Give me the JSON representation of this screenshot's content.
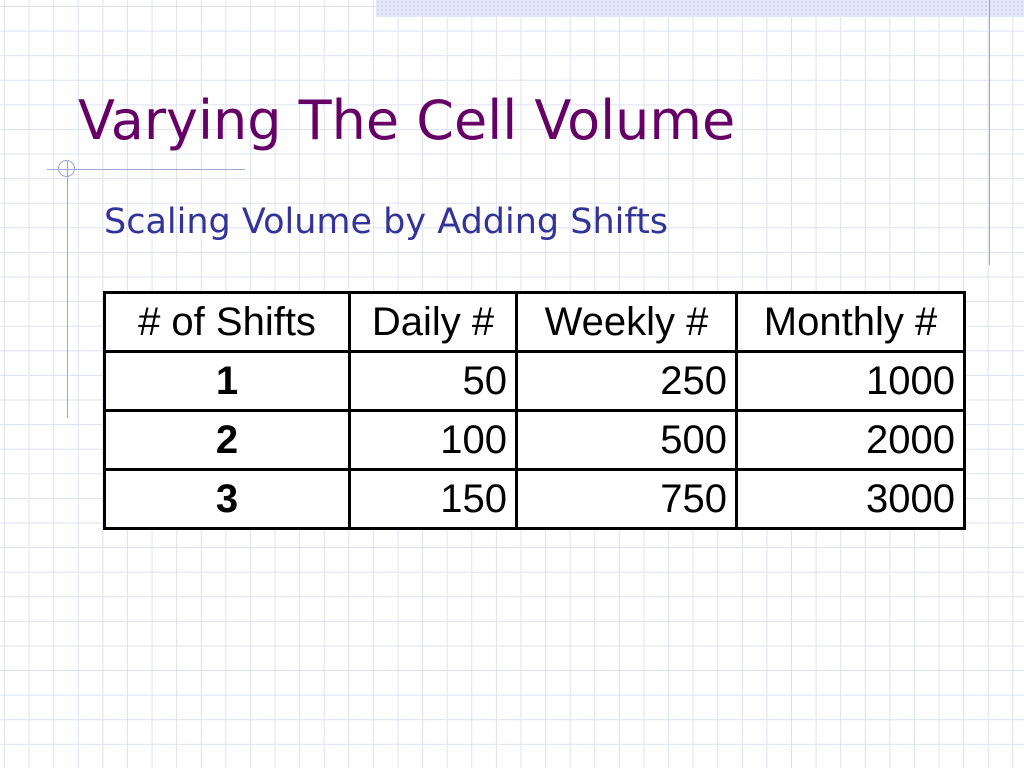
{
  "slide": {
    "title": "Varying The Cell Volume",
    "subtitle": "Scaling Volume by Adding Shifts",
    "colors": {
      "title": "#660066",
      "subtitle": "#333399",
      "grid": "#dde2f0",
      "accent_lines": "#9aa6d8"
    }
  },
  "table": {
    "headers": [
      "# of Shifts",
      "Daily #",
      "Weekly #",
      "Monthly #"
    ],
    "rows": [
      [
        "1",
        "50",
        "250",
        "1000"
      ],
      [
        "2",
        "100",
        "500",
        "2000"
      ],
      [
        "3",
        "150",
        "750",
        "3000"
      ]
    ]
  }
}
